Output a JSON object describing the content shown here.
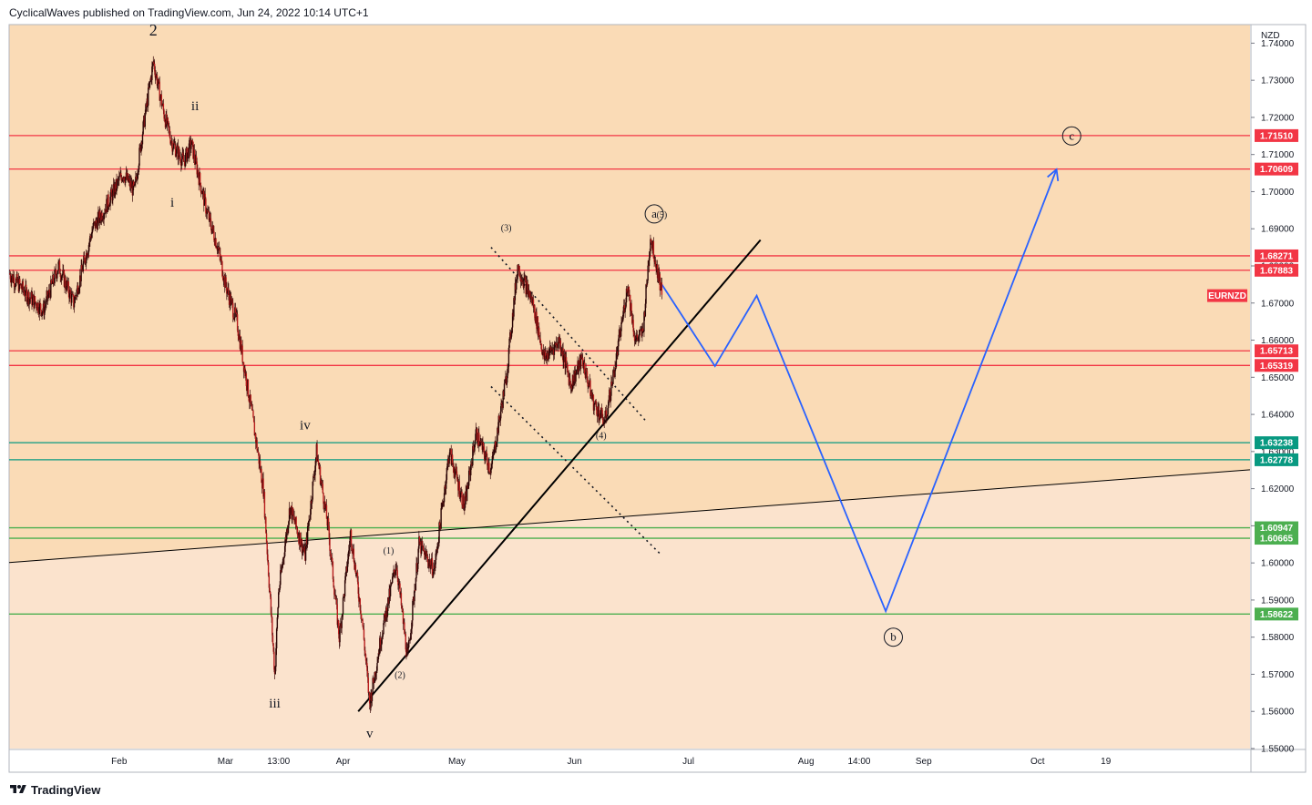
{
  "header": {
    "publisher_text": "CyclicalWaves published on TradingView.com, Jun 24, 2022 10:14 UTC+1"
  },
  "footer": {
    "brand": "TradingView",
    "logo_icon": "tradingview-logo-icon"
  },
  "chart_data": {
    "type": "candlestick",
    "symbol_badge": "EURNZD",
    "currency_label": "NZD",
    "ylim": [
      1.55,
      1.745
    ],
    "y_ticks": [
      "1.74000",
      "1.73000",
      "1.72000",
      "1.71000",
      "1.70000",
      "1.69000",
      "1.68000",
      "1.67000",
      "1.66000",
      "1.65000",
      "1.64000",
      "1.63000",
      "1.62000",
      "1.61000",
      "1.60000",
      "1.59000",
      "1.58000",
      "1.57000",
      "1.56000",
      "1.55000"
    ],
    "x_ticks": [
      "Feb",
      "Mar",
      "13:00",
      "Apr",
      "May",
      "Jun",
      "Jul",
      "Aug",
      "14:00",
      "Sep",
      "Oct",
      "19"
    ],
    "x_range": [
      "2022-01-03",
      "2022-11-26"
    ],
    "x_tick_dates": [
      "2022-02-01",
      "2022-03-01",
      "2022-03-15",
      "2022-04-01",
      "2022-05-01",
      "2022-06-01",
      "2022-07-01",
      "2022-08-01",
      "2022-08-15",
      "2022-09-01",
      "2022-10-01",
      "2022-10-19"
    ],
    "colors": {
      "background_upper": "#fadbb6",
      "background_lower": "#fbe3cd",
      "candle": "#b71c1c",
      "resistance": "#f23645",
      "support_teal": "#089981",
      "support_green": "#4caf50",
      "projection": "#2962ff",
      "trendline": "#000000"
    },
    "resistance_levels": [
      {
        "price": 1.7151,
        "label": "1.71510"
      },
      {
        "price": 1.70609,
        "label": "1.70609"
      },
      {
        "price": 1.68271,
        "label": "1.68271"
      },
      {
        "price": 1.67883,
        "label": "1.67883"
      },
      {
        "price": 1.65713,
        "label": "1.65713"
      },
      {
        "price": 1.65319,
        "label": "1.65319"
      }
    ],
    "support_levels": [
      {
        "price": 1.63238,
        "label": "1.63238",
        "color": "teal"
      },
      {
        "price": 1.62778,
        "label": "1.62778",
        "color": "teal"
      },
      {
        "price": 1.60947,
        "label": "1.60947",
        "color": "green"
      },
      {
        "price": 1.60665,
        "label": "1.60665",
        "color": "green"
      },
      {
        "price": 1.58622,
        "label": "1.58622",
        "color": "green"
      }
    ],
    "trendlines": [
      {
        "name": "long-term-support",
        "from": {
          "date": "2022-01-03",
          "price": 1.6001
        },
        "to": {
          "date": "2022-11-26",
          "price": 1.6251
        }
      },
      {
        "name": "rising-support",
        "from": {
          "date": "2022-04-05",
          "price": 1.56
        },
        "to": {
          "date": "2022-07-20",
          "price": 1.687
        }
      }
    ],
    "channel_lines": [
      {
        "from": {
          "date": "2022-05-10",
          "price": 1.685
        },
        "to": {
          "date": "2022-06-20",
          "price": 1.638
        }
      },
      {
        "from": {
          "date": "2022-05-10",
          "price": 1.6475
        },
        "to": {
          "date": "2022-06-24",
          "price": 1.602
        }
      }
    ],
    "projection_path": [
      {
        "date": "2022-06-24",
        "price": 1.675
      },
      {
        "date": "2022-07-08",
        "price": 1.653
      },
      {
        "date": "2022-07-19",
        "price": 1.672
      },
      {
        "date": "2022-08-22",
        "price": 1.587
      },
      {
        "date": "2022-10-06",
        "price": 1.706
      }
    ],
    "price_path": [
      {
        "date": "2022-01-03",
        "price": 1.678
      },
      {
        "date": "2022-01-08",
        "price": 1.672
      },
      {
        "date": "2022-01-12",
        "price": 1.668
      },
      {
        "date": "2022-01-16",
        "price": 1.68
      },
      {
        "date": "2022-01-20",
        "price": 1.67
      },
      {
        "date": "2022-01-25",
        "price": 1.69
      },
      {
        "date": "2022-01-28",
        "price": 1.695
      },
      {
        "date": "2022-02-02",
        "price": 1.705
      },
      {
        "date": "2022-02-05",
        "price": 1.7
      },
      {
        "date": "2022-02-07",
        "price": 1.715
      },
      {
        "date": "2022-02-10",
        "price": 1.735
      },
      {
        "date": "2022-02-13",
        "price": 1.72
      },
      {
        "date": "2022-02-15",
        "price": 1.713
      },
      {
        "date": "2022-02-18",
        "price": 1.708
      },
      {
        "date": "2022-02-20",
        "price": 1.713
      },
      {
        "date": "2022-02-24",
        "price": 1.695
      },
      {
        "date": "2022-02-27",
        "price": 1.685
      },
      {
        "date": "2022-03-01",
        "price": 1.675
      },
      {
        "date": "2022-03-04",
        "price": 1.665
      },
      {
        "date": "2022-03-08",
        "price": 1.64
      },
      {
        "date": "2022-03-11",
        "price": 1.62
      },
      {
        "date": "2022-03-14",
        "price": 1.57
      },
      {
        "date": "2022-03-15",
        "price": 1.592
      },
      {
        "date": "2022-03-18",
        "price": 1.615
      },
      {
        "date": "2022-03-22",
        "price": 1.602
      },
      {
        "date": "2022-03-25",
        "price": 1.63
      },
      {
        "date": "2022-03-28",
        "price": 1.61
      },
      {
        "date": "2022-03-31",
        "price": 1.58
      },
      {
        "date": "2022-04-03",
        "price": 1.608
      },
      {
        "date": "2022-04-06",
        "price": 1.585
      },
      {
        "date": "2022-04-08",
        "price": 1.562
      },
      {
        "date": "2022-04-11",
        "price": 1.58
      },
      {
        "date": "2022-04-15",
        "price": 1.6
      },
      {
        "date": "2022-04-18",
        "price": 1.574
      },
      {
        "date": "2022-04-21",
        "price": 1.605
      },
      {
        "date": "2022-04-25",
        "price": 1.598
      },
      {
        "date": "2022-04-29",
        "price": 1.63
      },
      {
        "date": "2022-05-03",
        "price": 1.615
      },
      {
        "date": "2022-05-06",
        "price": 1.635
      },
      {
        "date": "2022-05-10",
        "price": 1.625
      },
      {
        "date": "2022-05-14",
        "price": 1.65
      },
      {
        "date": "2022-05-17",
        "price": 1.68
      },
      {
        "date": "2022-05-21",
        "price": 1.67
      },
      {
        "date": "2022-05-24",
        "price": 1.655
      },
      {
        "date": "2022-05-28",
        "price": 1.66
      },
      {
        "date": "2022-05-31",
        "price": 1.648
      },
      {
        "date": "2022-06-03",
        "price": 1.655
      },
      {
        "date": "2022-06-06",
        "price": 1.643
      },
      {
        "date": "2022-06-09",
        "price": 1.638
      },
      {
        "date": "2022-06-12",
        "price": 1.655
      },
      {
        "date": "2022-06-15",
        "price": 1.675
      },
      {
        "date": "2022-06-17",
        "price": 1.66
      },
      {
        "date": "2022-06-19",
        "price": 1.662
      },
      {
        "date": "2022-06-21",
        "price": 1.688
      },
      {
        "date": "2022-06-24",
        "price": 1.673
      }
    ],
    "wave_labels": [
      {
        "text": "2",
        "date": "2022-02-10",
        "price": 1.742,
        "size": "large"
      },
      {
        "text": "ii",
        "date": "2022-02-21",
        "price": 1.722,
        "size": "medium"
      },
      {
        "text": "i",
        "date": "2022-02-15",
        "price": 1.696,
        "size": "medium"
      },
      {
        "text": "iii",
        "date": "2022-03-14",
        "price": 1.561,
        "size": "medium"
      },
      {
        "text": "iv",
        "date": "2022-03-22",
        "price": 1.636,
        "size": "medium"
      },
      {
        "text": "v",
        "date": "2022-04-08",
        "price": 1.553,
        "size": "medium"
      },
      {
        "text": "(1)",
        "date": "2022-04-13",
        "price": 1.6025,
        "size": "small"
      },
      {
        "text": "(2)",
        "date": "2022-04-16",
        "price": 1.569,
        "size": "small"
      },
      {
        "text": "(3)",
        "date": "2022-05-14",
        "price": 1.6895,
        "size": "small"
      },
      {
        "text": "(4)",
        "date": "2022-06-08",
        "price": 1.6335,
        "size": "small"
      },
      {
        "text": "(5)",
        "date": "2022-06-24",
        "price": 1.693,
        "size": "small"
      }
    ],
    "circled_labels": [
      {
        "text": "a",
        "date": "2022-06-22",
        "price": 1.694
      },
      {
        "text": "b",
        "date": "2022-08-24",
        "price": 1.58
      },
      {
        "text": "c",
        "date": "2022-10-10",
        "price": 1.715
      }
    ]
  }
}
